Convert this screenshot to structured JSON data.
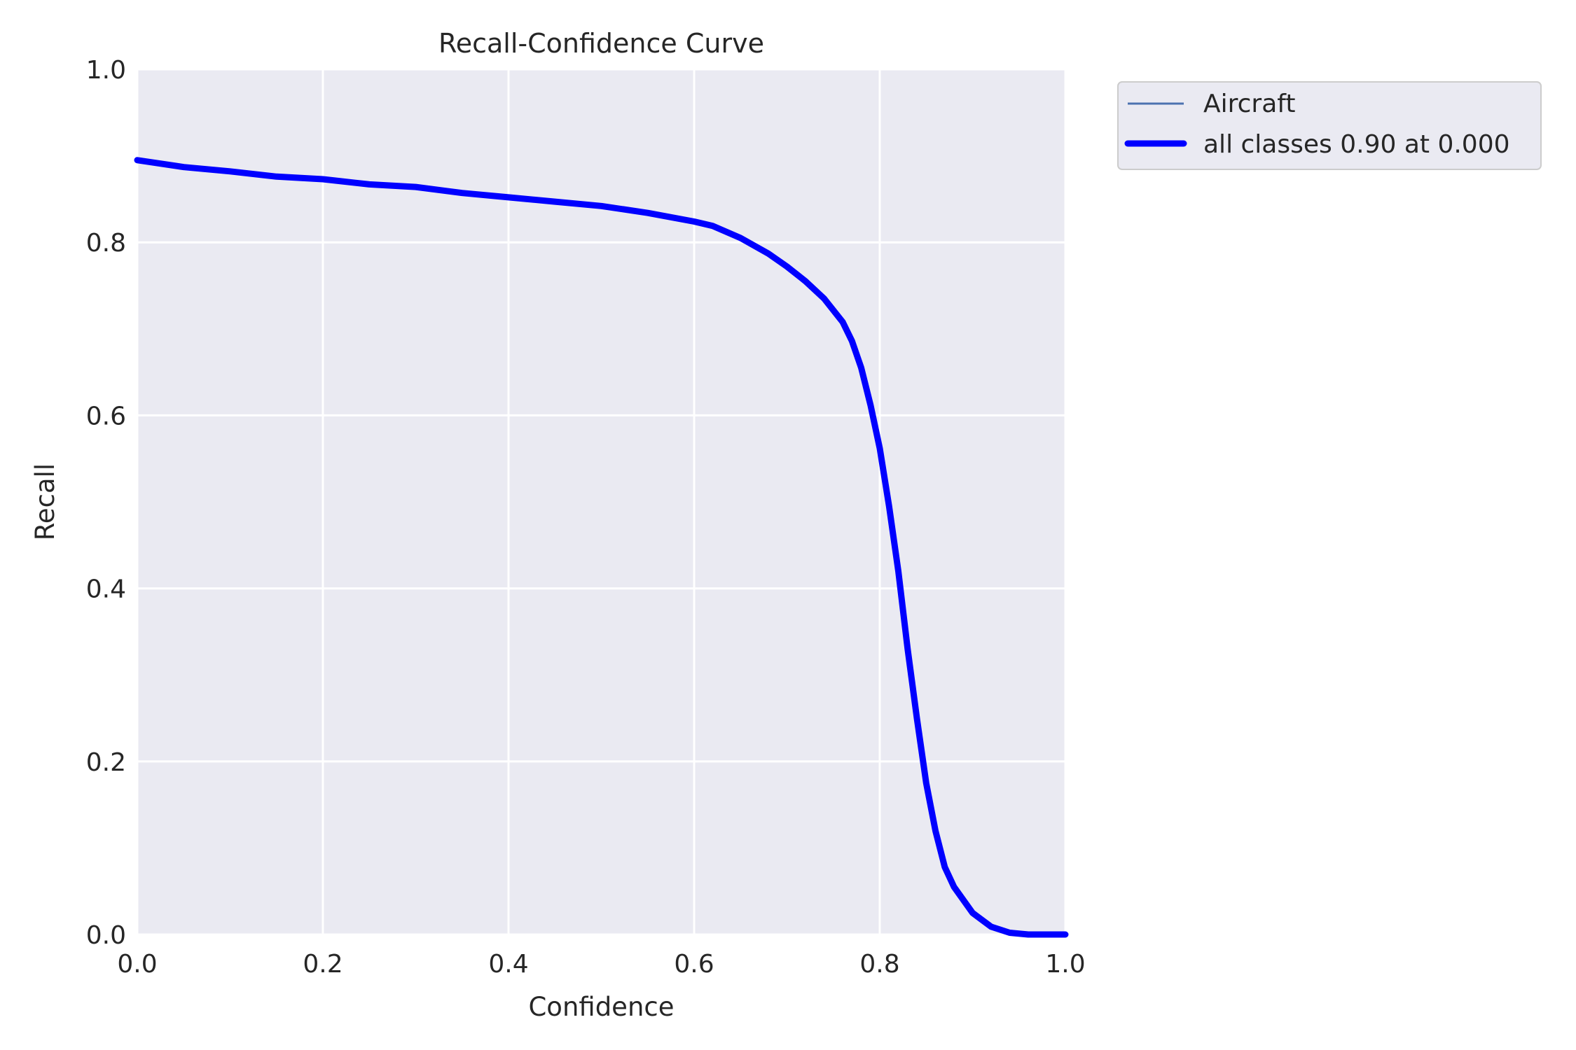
{
  "chart_data": {
    "type": "line",
    "title": "Recall-Confidence Curve",
    "xlabel": "Confidence",
    "ylabel": "Recall",
    "xlim": [
      0,
      1
    ],
    "ylim": [
      0,
      1
    ],
    "xticks": [
      "0.0",
      "0.2",
      "0.4",
      "0.6",
      "0.8",
      "1.0"
    ],
    "yticks": [
      "0.0",
      "0.2",
      "0.4",
      "0.6",
      "0.8",
      "1.0"
    ],
    "grid": true,
    "legend_position": "outside-top-right",
    "series": [
      {
        "name": "Aircraft",
        "color": "#4c72b0",
        "x": [
          0.0,
          0.05,
          0.1,
          0.15,
          0.2,
          0.25,
          0.3,
          0.35,
          0.4,
          0.45,
          0.5,
          0.55,
          0.6,
          0.62,
          0.65,
          0.68,
          0.7,
          0.72,
          0.74,
          0.76,
          0.77,
          0.78,
          0.79,
          0.8,
          0.81,
          0.82,
          0.83,
          0.84,
          0.85,
          0.86,
          0.87,
          0.88,
          0.9,
          0.92,
          0.94,
          0.96,
          0.98,
          1.0
        ],
        "y": [
          0.895,
          0.887,
          0.882,
          0.876,
          0.873,
          0.867,
          0.864,
          0.857,
          0.852,
          0.847,
          0.842,
          0.834,
          0.824,
          0.819,
          0.805,
          0.787,
          0.772,
          0.755,
          0.735,
          0.708,
          0.686,
          0.655,
          0.612,
          0.562,
          0.495,
          0.42,
          0.33,
          0.25,
          0.175,
          0.12,
          0.078,
          0.055,
          0.025,
          0.009,
          0.002,
          0.0,
          0.0,
          0.0
        ]
      },
      {
        "name": "all classes 0.90 at 0.000",
        "color": "#0000ff",
        "x": [
          0.0,
          0.05,
          0.1,
          0.15,
          0.2,
          0.25,
          0.3,
          0.35,
          0.4,
          0.45,
          0.5,
          0.55,
          0.6,
          0.62,
          0.65,
          0.68,
          0.7,
          0.72,
          0.74,
          0.76,
          0.77,
          0.78,
          0.79,
          0.8,
          0.81,
          0.82,
          0.83,
          0.84,
          0.85,
          0.86,
          0.87,
          0.88,
          0.9,
          0.92,
          0.94,
          0.96,
          0.98,
          1.0
        ],
        "y": [
          0.895,
          0.887,
          0.882,
          0.876,
          0.873,
          0.867,
          0.864,
          0.857,
          0.852,
          0.847,
          0.842,
          0.834,
          0.824,
          0.819,
          0.805,
          0.787,
          0.772,
          0.755,
          0.735,
          0.708,
          0.686,
          0.655,
          0.612,
          0.562,
          0.495,
          0.42,
          0.33,
          0.25,
          0.175,
          0.12,
          0.078,
          0.055,
          0.025,
          0.009,
          0.002,
          0.0,
          0.0,
          0.0
        ]
      }
    ]
  }
}
